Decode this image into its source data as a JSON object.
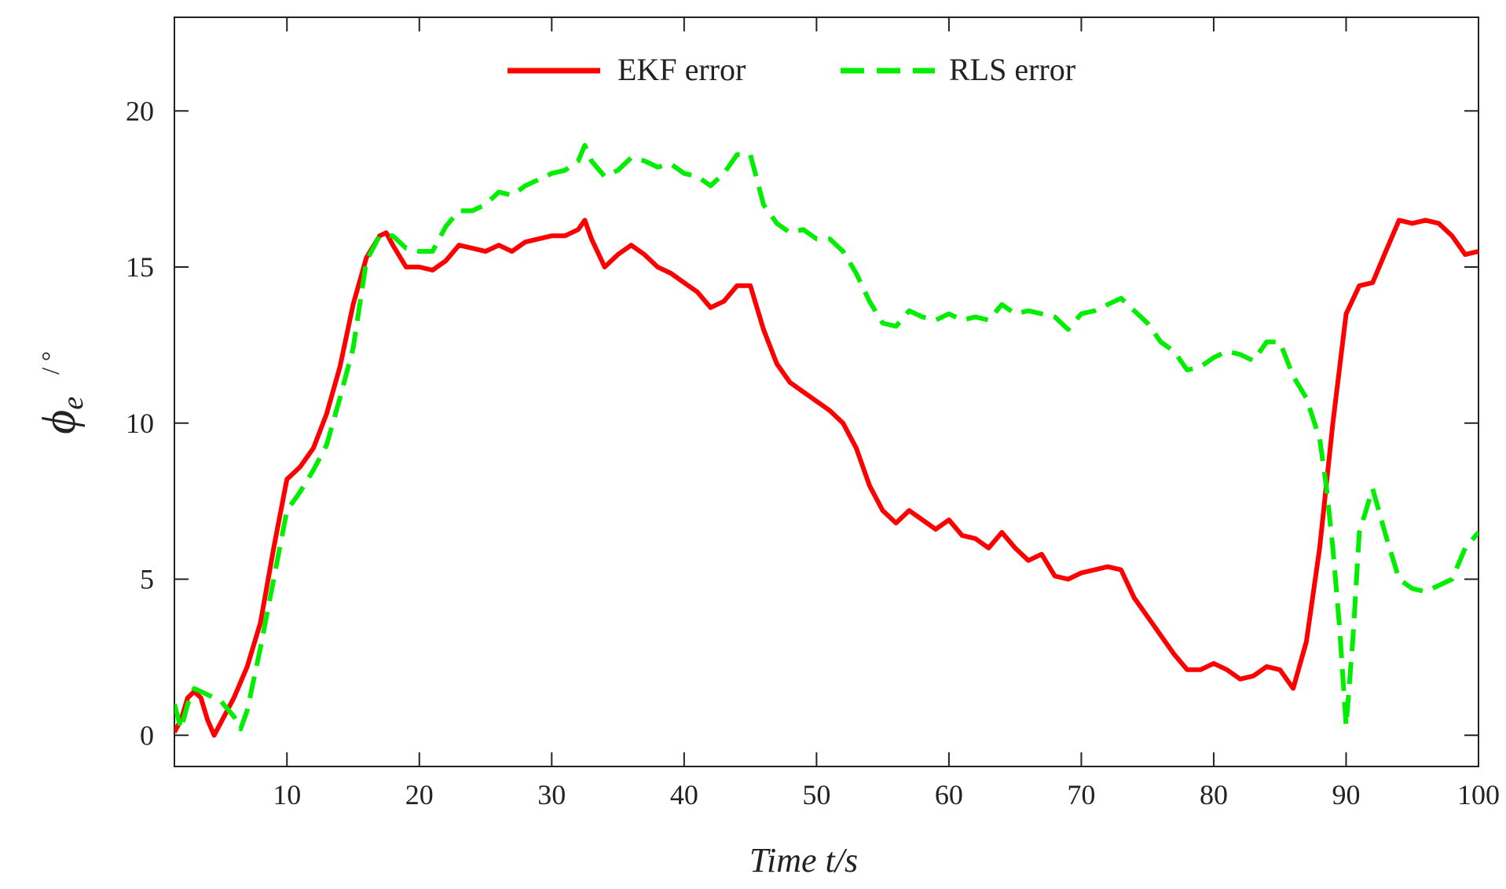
{
  "chart_data": {
    "type": "line",
    "title": "",
    "xlabel": "Time t/s",
    "ylabel_symbol": "ϕ",
    "ylabel_subscript": "e",
    "ylabel_unit": "/ °",
    "xlim": [
      1.5,
      100
    ],
    "ylim": [
      -1,
      23
    ],
    "xticks": [
      10,
      20,
      30,
      40,
      50,
      60,
      70,
      80,
      90,
      100
    ],
    "yticks": [
      0,
      5,
      10,
      15,
      20
    ],
    "grid": false,
    "legend_position": "top-center",
    "series": [
      {
        "name": "EKF error",
        "color": "#ff0000",
        "dash": "solid",
        "x": [
          1.5,
          2,
          2.5,
          3,
          3.5,
          4,
          4.5,
          5,
          6,
          7,
          8,
          9,
          10,
          11,
          12,
          13,
          14,
          15,
          16,
          17,
          17.5,
          18,
          19,
          20,
          21,
          22,
          23,
          24,
          25,
          26,
          27,
          28,
          29,
          30,
          31,
          32,
          32.5,
          33,
          34,
          35,
          36,
          37,
          38,
          39,
          40,
          41,
          42,
          43,
          44,
          45,
          46,
          47,
          48,
          49,
          50,
          51,
          52,
          53,
          54,
          55,
          56,
          57,
          58,
          59,
          60,
          61,
          62,
          63,
          64,
          65,
          66,
          67,
          68,
          69,
          70,
          71,
          72,
          73,
          74,
          75,
          76,
          77,
          78,
          79,
          80,
          81,
          82,
          83,
          84,
          85,
          86,
          87,
          88,
          89,
          90,
          91,
          92,
          93,
          94,
          95,
          96,
          97,
          98,
          99,
          100
        ],
        "y": [
          0.1,
          0.5,
          1.2,
          1.4,
          1.2,
          0.5,
          0.0,
          0.4,
          1.2,
          2.2,
          3.6,
          6.0,
          8.2,
          8.6,
          9.2,
          10.3,
          11.8,
          13.8,
          15.3,
          16.0,
          16.1,
          15.7,
          15.0,
          15.0,
          14.9,
          15.2,
          15.7,
          15.6,
          15.5,
          15.7,
          15.5,
          15.8,
          15.9,
          16.0,
          16.0,
          16.2,
          16.5,
          15.9,
          15.0,
          15.4,
          15.7,
          15.4,
          15.0,
          14.8,
          14.5,
          14.2,
          13.7,
          13.9,
          14.4,
          14.4,
          13.0,
          11.9,
          11.3,
          11.0,
          10.7,
          10.4,
          10.0,
          9.2,
          8.0,
          7.2,
          6.8,
          7.2,
          6.9,
          6.6,
          6.9,
          6.4,
          6.3,
          6.0,
          6.5,
          6.0,
          5.6,
          5.8,
          5.1,
          5.0,
          5.2,
          5.3,
          5.4,
          5.3,
          4.4,
          3.8,
          3.2,
          2.6,
          2.1,
          2.1,
          2.3,
          2.1,
          1.8,
          1.9,
          2.2,
          2.1,
          1.5,
          3.0,
          6.0,
          10.0,
          13.5,
          14.4,
          14.5,
          15.5,
          16.5,
          16.4,
          16.5,
          16.4,
          16.0,
          15.4,
          15.5
        ]
      },
      {
        "name": "RLS error",
        "color": "#00ee00",
        "dash": "dashed",
        "x": [
          1.5,
          2,
          2.5,
          3,
          3.5,
          4,
          5,
          6,
          6.5,
          7,
          8,
          9,
          10,
          11,
          12,
          13,
          14,
          15,
          16,
          17,
          18,
          19,
          20,
          21,
          22,
          23,
          24,
          25,
          26,
          27,
          28,
          29,
          30,
          31,
          32,
          32.5,
          33,
          34,
          35,
          36,
          37,
          38,
          39,
          40,
          41,
          42,
          43,
          44,
          45,
          46,
          47,
          48,
          49,
          50,
          51,
          52,
          53,
          54,
          55,
          56,
          57,
          58,
          59,
          60,
          61,
          62,
          63,
          64,
          65,
          66,
          67,
          68,
          69,
          70,
          71,
          72,
          73,
          74,
          75,
          76,
          77,
          78,
          79,
          80,
          81,
          82,
          83,
          84,
          85,
          86,
          87,
          88,
          88.5,
          89,
          89.5,
          90,
          90.5,
          91,
          92,
          93,
          94,
          95,
          96,
          97,
          98,
          99,
          100
        ],
        "y": [
          1.0,
          0.2,
          1.0,
          1.5,
          1.4,
          1.3,
          1.1,
          0.6,
          0.2,
          0.8,
          2.8,
          5.0,
          7.2,
          7.8,
          8.5,
          9.3,
          10.8,
          12.4,
          15.2,
          16.0,
          16.0,
          15.6,
          15.5,
          15.5,
          16.3,
          16.8,
          16.8,
          17.0,
          17.4,
          17.3,
          17.6,
          17.8,
          18.0,
          18.1,
          18.4,
          18.9,
          18.4,
          17.9,
          18.1,
          18.5,
          18.4,
          18.2,
          18.3,
          18.0,
          17.9,
          17.6,
          18.0,
          18.6,
          18.6,
          17.0,
          16.4,
          16.1,
          16.2,
          15.9,
          15.9,
          15.5,
          14.8,
          13.9,
          13.2,
          13.1,
          13.6,
          13.4,
          13.3,
          13.5,
          13.3,
          13.4,
          13.3,
          13.8,
          13.5,
          13.6,
          13.5,
          13.4,
          13.0,
          13.5,
          13.6,
          13.8,
          14.0,
          13.6,
          13.2,
          12.6,
          12.3,
          11.7,
          11.8,
          12.1,
          12.3,
          12.2,
          12.0,
          12.6,
          12.6,
          11.5,
          10.8,
          9.5,
          8.0,
          6.0,
          3.5,
          0.3,
          3.0,
          6.5,
          7.9,
          6.4,
          5.0,
          4.7,
          4.6,
          4.8,
          5.0,
          6.0,
          6.5
        ]
      }
    ]
  }
}
